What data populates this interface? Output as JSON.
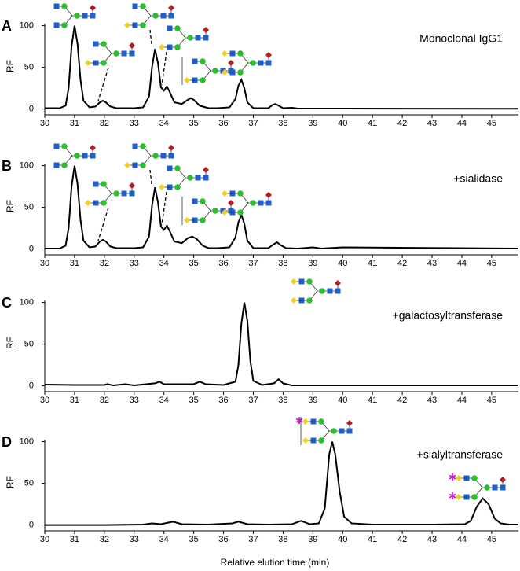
{
  "chart_data": [
    {
      "type": "line",
      "panel_label": "A",
      "annotation": "Monoclonal IgG1",
      "y_label": "RF",
      "color": "#000000",
      "x": [
        30,
        30.5,
        30.7,
        30.8,
        30.9,
        31.0,
        31.1,
        31.2,
        31.3,
        31.5,
        31.7,
        31.85,
        31.95,
        32.05,
        32.2,
        32.4,
        33.0,
        33.3,
        33.5,
        33.6,
        33.7,
        33.8,
        33.9,
        34.0,
        34.1,
        34.2,
        34.35,
        34.6,
        34.8,
        34.9,
        35.0,
        35.2,
        35.5,
        35.8,
        36.2,
        36.4,
        36.5,
        36.6,
        36.7,
        36.8,
        37.0,
        37.5,
        37.65,
        37.75,
        37.85,
        38.0,
        38.3,
        38.5,
        39,
        40,
        45.9
      ],
      "values": [
        1,
        1,
        4,
        25,
        75,
        100,
        78,
        35,
        10,
        2,
        3,
        8,
        10,
        8,
        3,
        1,
        1,
        2,
        15,
        50,
        72,
        55,
        26,
        22,
        27,
        20,
        8,
        6,
        11,
        13,
        11,
        4,
        1,
        1,
        2,
        12,
        28,
        35,
        25,
        8,
        1,
        1,
        5,
        6,
        4,
        1,
        1.5,
        0.5,
        0.5,
        0.5,
        0.3
      ],
      "xlim": [
        30,
        45.9
      ],
      "xticks": [
        30,
        31,
        32,
        33,
        34,
        35,
        36,
        37,
        38,
        39,
        40,
        41,
        42,
        43,
        44,
        45
      ],
      "ylim": [
        -7,
        110
      ],
      "yticks": [
        0,
        50,
        100
      ]
    },
    {
      "type": "line",
      "panel_label": "B",
      "annotation": "+sialidase",
      "y_label": "RF",
      "color": "#000000",
      "x": [
        30,
        30.5,
        30.7,
        30.8,
        30.9,
        31.0,
        31.1,
        31.2,
        31.3,
        31.5,
        31.7,
        31.85,
        31.95,
        32.05,
        32.2,
        32.4,
        33.0,
        33.3,
        33.5,
        33.6,
        33.7,
        33.8,
        33.9,
        34.0,
        34.1,
        34.2,
        34.35,
        34.6,
        34.8,
        34.95,
        35.1,
        35.3,
        35.5,
        35.8,
        36.2,
        36.4,
        36.5,
        36.6,
        36.7,
        36.8,
        37.0,
        37.5,
        37.7,
        37.8,
        37.9,
        38.1,
        38.5,
        39.0,
        39.3,
        40.0,
        45.9
      ],
      "values": [
        0.5,
        0.5,
        4,
        25,
        75,
        100,
        78,
        35,
        10,
        2,
        3,
        9,
        11,
        9,
        3,
        1,
        1,
        2,
        15,
        52,
        74,
        56,
        27,
        23,
        28,
        21,
        9,
        7,
        13,
        15,
        12,
        4,
        1,
        1,
        2,
        14,
        32,
        41,
        30,
        10,
        1,
        1,
        6,
        8,
        5,
        1,
        0.5,
        2,
        0.5,
        2,
        0.5
      ],
      "xlim": [
        30,
        45.9
      ],
      "xticks": [
        30,
        31,
        32,
        33,
        34,
        35,
        36,
        37,
        38,
        39,
        40,
        41,
        42,
        43,
        44,
        45
      ],
      "ylim": [
        -7,
        110
      ],
      "yticks": [
        0,
        50,
        100
      ]
    },
    {
      "type": "line",
      "panel_label": "C",
      "annotation": "+galactosyltransferase",
      "y_label": "RF",
      "color": "#000000",
      "x": [
        30,
        31,
        32.0,
        32.1,
        32.3,
        32.7,
        33.0,
        33.7,
        33.85,
        34.0,
        34.5,
        35.0,
        35.2,
        35.4,
        36.0,
        36.4,
        36.5,
        36.6,
        36.7,
        36.8,
        36.9,
        37.0,
        37.3,
        37.7,
        37.85,
        38.0,
        38.3,
        39,
        45.9
      ],
      "values": [
        1.5,
        1,
        1,
        2,
        0.5,
        2,
        0.5,
        3,
        5,
        2,
        2,
        2,
        5,
        2,
        1,
        5,
        25,
        75,
        100,
        78,
        30,
        6,
        1,
        3,
        8,
        3,
        0.5,
        0.5,
        0.5
      ],
      "xlim": [
        30,
        45.9
      ],
      "xticks": [
        30,
        31,
        32,
        33,
        34,
        35,
        36,
        37,
        38,
        39,
        40,
        41,
        42,
        43,
        44,
        45
      ],
      "ylim": [
        -7,
        110
      ],
      "yticks": [
        0,
        50,
        100
      ]
    },
    {
      "type": "line",
      "panel_label": "D",
      "annotation": "+sialyltransferase",
      "y_label": "RF",
      "x_label": "Relative elution time (min)",
      "color": "#000000",
      "x": [
        30,
        32,
        33.3,
        33.6,
        33.9,
        34.3,
        34.6,
        35.5,
        36.3,
        36.5,
        36.8,
        37.5,
        38.3,
        38.6,
        38.9,
        39.2,
        39.4,
        39.55,
        39.65,
        39.75,
        39.9,
        40.05,
        40.3,
        41,
        43,
        44.1,
        44.3,
        44.5,
        44.7,
        44.9,
        45.1,
        45.3,
        45.6,
        45.9
      ],
      "values": [
        0,
        0,
        0.5,
        2,
        1,
        4,
        1,
        0.5,
        2,
        4,
        1,
        0.5,
        1,
        5,
        1,
        2,
        20,
        85,
        100,
        85,
        40,
        10,
        2,
        0.5,
        0.5,
        1,
        5,
        22,
        32,
        25,
        8,
        2,
        0.5,
        0.5
      ],
      "xlim": [
        30,
        45.9
      ],
      "xticks": [
        30,
        31,
        32,
        33,
        34,
        35,
        36,
        37,
        38,
        39,
        40,
        41,
        42,
        43,
        44,
        45
      ],
      "ylim": [
        -7,
        110
      ],
      "yticks": [
        0,
        50,
        100
      ]
    }
  ]
}
